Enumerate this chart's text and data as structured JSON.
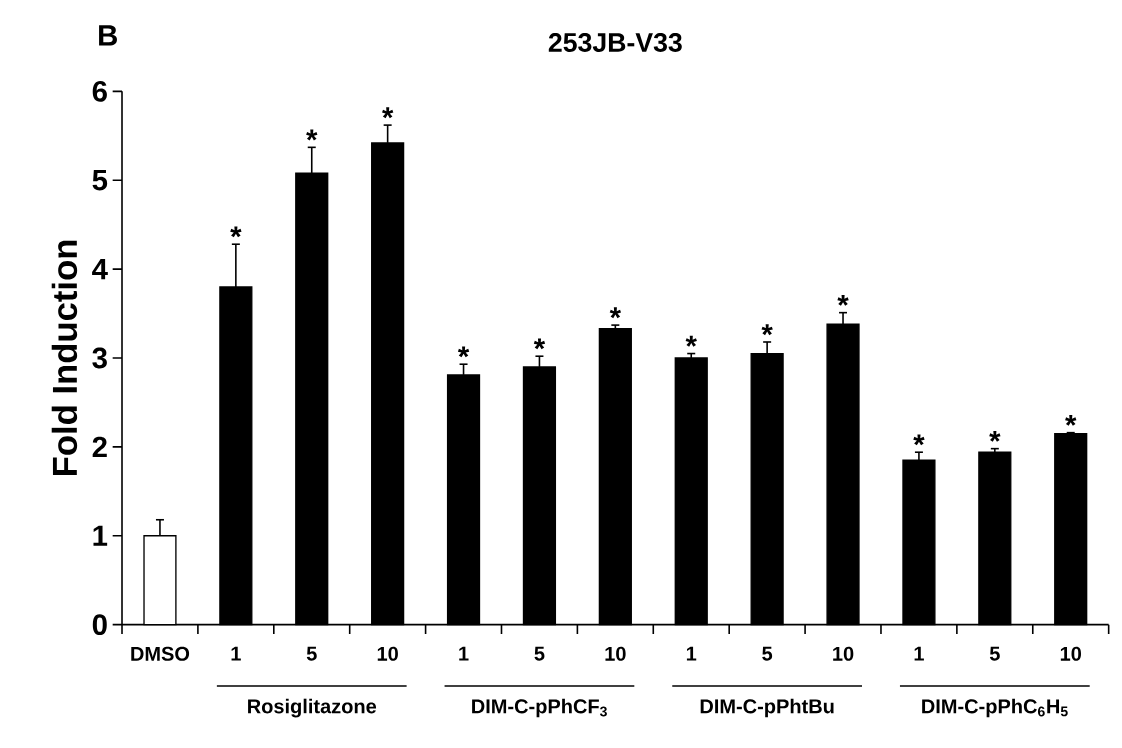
{
  "chart_data": {
    "type": "bar",
    "title": "253JB-V33",
    "ylabel": "Fold Induction",
    "categories": [
      "DMSO",
      "1",
      "5",
      "10",
      "1",
      "5",
      "10",
      "1",
      "5",
      "10",
      "1",
      "5",
      "10"
    ],
    "values": [
      1.0,
      3.8,
      5.08,
      5.42,
      2.81,
      2.9,
      3.33,
      3.0,
      3.05,
      3.38,
      1.85,
      1.94,
      2.15
    ],
    "errors": [
      0.18,
      0.48,
      0.29,
      0.2,
      0.12,
      0.12,
      0.04,
      0.05,
      0.13,
      0.13,
      0.09,
      0.04,
      0.01
    ],
    "colors": [
      "#ffffff",
      "#000000",
      "#000000",
      "#000000",
      "#000000",
      "#000000",
      "#000000",
      "#000000",
      "#000000",
      "#000000",
      "#000000",
      "#000000",
      "#000000"
    ],
    "ylim": [
      0,
      6
    ],
    "yticks": [
      0,
      1,
      2,
      3,
      4,
      5,
      6
    ],
    "annotations": [
      "B",
      "Rosiglitazone",
      "DIM-C-pPhCF$_{3}$",
      "DIM-C-pPhtBu",
      "DIM-C-pPhC$_{6}$H$_{5}$",
      "*",
      "*",
      "*",
      "*",
      "*",
      "*",
      "*",
      "*",
      "*",
      "*",
      "*",
      "*"
    ]
  }
}
